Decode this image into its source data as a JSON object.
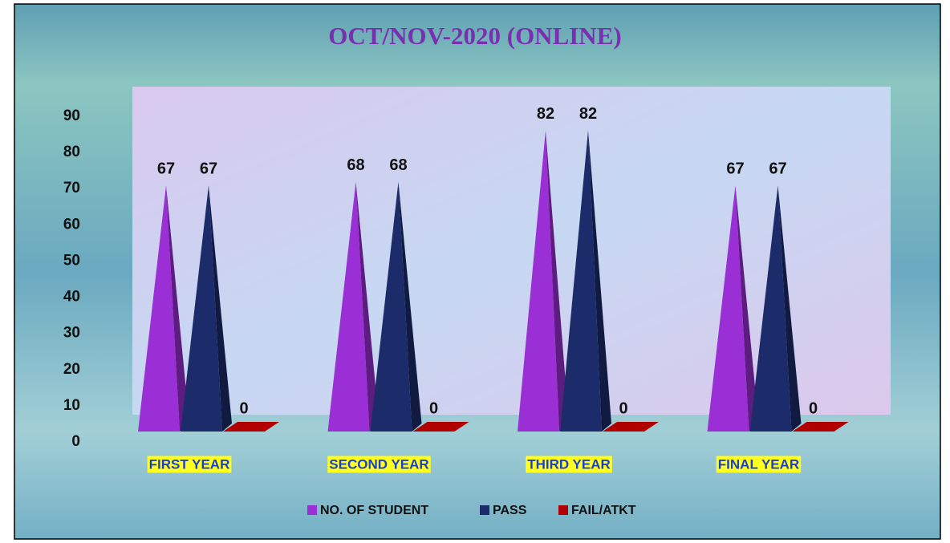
{
  "chart_data": {
    "type": "bar",
    "title": "OCT/NOV-2020 (ONLINE)",
    "categories": [
      "FIRST YEAR",
      "SECOND YEAR",
      "THIRD YEAR",
      "FINAL YEAR"
    ],
    "series": [
      {
        "name": "NO. OF STUDENT",
        "color": "#9b2fd6",
        "values": [
          67,
          68,
          82,
          67
        ]
      },
      {
        "name": "PASS",
        "color": "#1c2c6a",
        "values": [
          67,
          68,
          82,
          67
        ]
      },
      {
        "name": "FAIL/ATKT",
        "color": "#b00000",
        "values": [
          0,
          0,
          0,
          0
        ]
      }
    ],
    "ylim": [
      0,
      90
    ],
    "yticks": [
      0,
      10,
      20,
      30,
      40,
      50,
      60,
      70,
      80,
      90
    ],
    "legend": "bottom"
  }
}
